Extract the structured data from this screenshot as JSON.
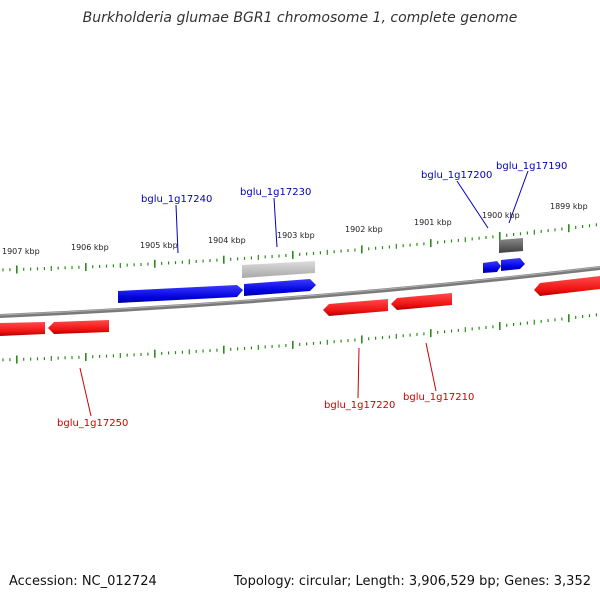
{
  "title": "Burkholderia glumae BGR1 chromosome 1, complete genome",
  "footer": {
    "accession": "Accession: NC_012724",
    "summary": "Topology: circular; Length: 3,906,529 bp; Genes: 3,352"
  },
  "colors": {
    "backbone": "#7a7a7a",
    "tick": "#2d8a1c",
    "forward_gene": "#0000dd",
    "reverse_gene": "#ee1111",
    "pseudo_gene": "#c0c0c0",
    "dark_gene": "#606060",
    "forward_label": "#0000bb",
    "reverse_label": "#cc0000",
    "scale_label": "#222222"
  },
  "scale_labels": [
    "1907 kbp",
    "1906 kbp",
    "1905 kbp",
    "1904 kbp",
    "1903 kbp",
    "1902 kbp",
    "1901 kbp",
    "1900 kbp",
    "1899 kbp"
  ],
  "gene_labels": {
    "forward": [
      "bglu_1g17240",
      "bglu_1g17230",
      "bglu_1g17200",
      "bglu_1g17190"
    ],
    "reverse": [
      "bglu_1g17250",
      "bglu_1g17220",
      "bglu_1g17210"
    ]
  }
}
